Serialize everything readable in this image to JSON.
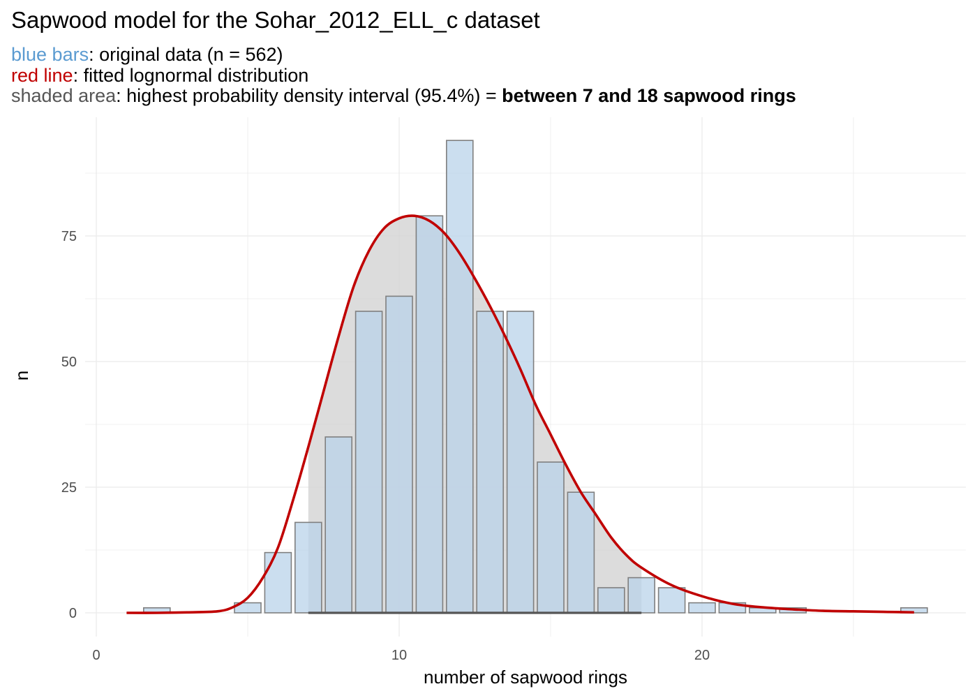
{
  "title": "Sapwood model for the Sohar_2012_ELL_c dataset",
  "subtitle": {
    "line1": {
      "key": "blue bars",
      "text": ": original data (n = 562)"
    },
    "line2": {
      "key": "red line",
      "text": ": fitted lognormal distribution"
    },
    "line3": {
      "key": "shaded area",
      "text": ": highest probability density interval (95.4%) = ",
      "bold": "between 7 and 18 sapwood rings"
    }
  },
  "colors": {
    "bar_fill": "#bad3ea",
    "bar_stroke": "#7f7f7f",
    "hdi_fill": "#d3d3d3",
    "curve": "#c00000",
    "hdi_line": "#555555",
    "grid": "#ebebeb",
    "blue_text": "#5b9bd1",
    "red_text": "#c00000",
    "grey_text": "#555555"
  },
  "chart_data": {
    "type": "bar",
    "xlabel": "number of sapwood rings",
    "ylabel": "n",
    "xlim": [
      0,
      28
    ],
    "ylim": [
      0,
      97
    ],
    "x_ticks": [
      0,
      10,
      20
    ],
    "y_ticks": [
      0,
      25,
      50,
      75
    ],
    "grid": true,
    "bars": {
      "x": [
        2,
        5,
        6,
        7,
        8,
        9,
        10,
        11,
        12,
        13,
        14,
        15,
        16,
        17,
        18,
        19,
        20,
        21,
        22,
        23,
        27
      ],
      "n": [
        1,
        2,
        12,
        18,
        35,
        60,
        63,
        79,
        94,
        60,
        60,
        30,
        24,
        5,
        7,
        5,
        2,
        2,
        1,
        1,
        1
      ]
    },
    "hdi": {
      "lower": 7,
      "upper": 18,
      "probability": "95.4%"
    },
    "lognormal_fit": {
      "x": [
        1,
        2,
        3,
        4,
        4.5,
        5,
        5.5,
        6,
        6.5,
        7,
        7.5,
        8,
        8.5,
        9,
        9.5,
        10,
        10.5,
        11,
        11.5,
        12,
        12.5,
        13,
        13.5,
        14,
        14.5,
        15,
        15.5,
        16,
        16.5,
        17,
        17.5,
        18,
        19,
        20,
        21,
        22,
        23,
        24,
        25,
        26,
        27
      ],
      "y": [
        0,
        0,
        0.1,
        0.3,
        1.1,
        3,
        7,
        13,
        22.5,
        33,
        44,
        55,
        65,
        72,
        76.5,
        78.5,
        79,
        78,
        75.5,
        71.5,
        66.5,
        61,
        55,
        48.5,
        41.5,
        35.5,
        29.5,
        24,
        19.5,
        15,
        11.5,
        9,
        5.5,
        3.3,
        1.8,
        1.1,
        0.7,
        0.4,
        0.3,
        0.2,
        0.1
      ]
    }
  }
}
